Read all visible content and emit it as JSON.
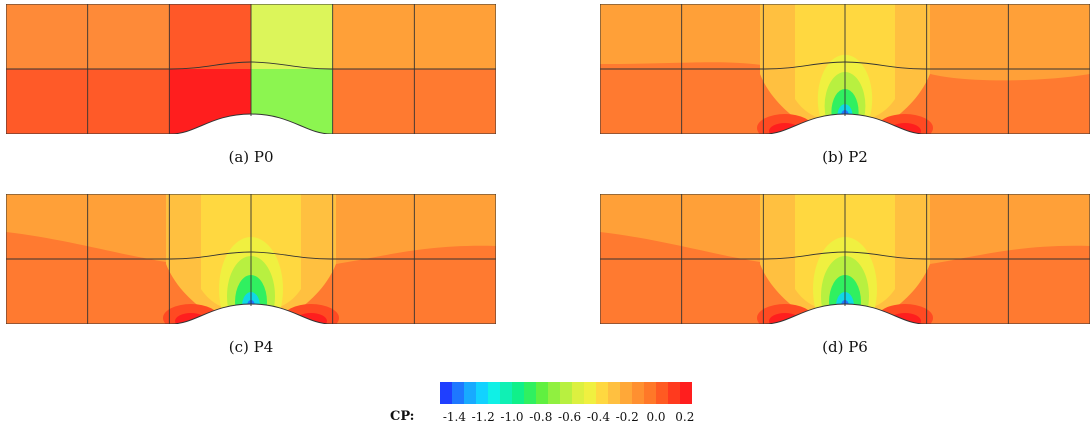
{
  "panels": [
    {
      "id": "a",
      "caption": "(a)  P0",
      "order": 0
    },
    {
      "id": "b",
      "caption": "(b)  P2",
      "order": 2
    },
    {
      "id": "c",
      "caption": "(c)  P4",
      "order": 4
    },
    {
      "id": "d",
      "caption": "(d)  P6",
      "order": 6
    }
  ],
  "colorbar": {
    "label": "CP:",
    "ticks": [
      "-1.4",
      "-1.2",
      "-1.0",
      "-0.8",
      "-0.6",
      "-0.4",
      "-0.2",
      "0.0",
      "0.2"
    ],
    "range": [
      -1.5,
      0.25
    ],
    "levels": 21,
    "colors": [
      "#1f3fff",
      "#1e78ff",
      "#18aaff",
      "#12d2ff",
      "#10f0e6",
      "#10f0b4",
      "#10f08a",
      "#30f060",
      "#60f040",
      "#90f040",
      "#b8f040",
      "#dcf040",
      "#f0f040",
      "#ffd840",
      "#ffc040",
      "#ffa838",
      "#ff9030",
      "#ff7828",
      "#ff5a22",
      "#ff3a1e",
      "#ff1e1e"
    ]
  },
  "p0_cells": {
    "top": [
      "#fe8a38",
      "#fe8a38",
      "#ff5828",
      "#dcf55a",
      "#ffa038",
      "#ffa038"
    ],
    "bottom": [
      "#ff5a28",
      "#ff5a28",
      "#ff1e1e",
      "#8cf550",
      "#ff7a30",
      "#ff7a30"
    ]
  },
  "field_colors": {
    "base": "#ff7a30",
    "upper": "#ffa038",
    "mid": "#ffc040",
    "plume": "#ffd840",
    "yellow": "#f0f040",
    "lime": "#b8f040",
    "green": "#30f060",
    "cyan": "#10d8e6",
    "blue": "#1e78ff",
    "red": "#ff1e1e",
    "redorange": "#ff4a22"
  }
}
